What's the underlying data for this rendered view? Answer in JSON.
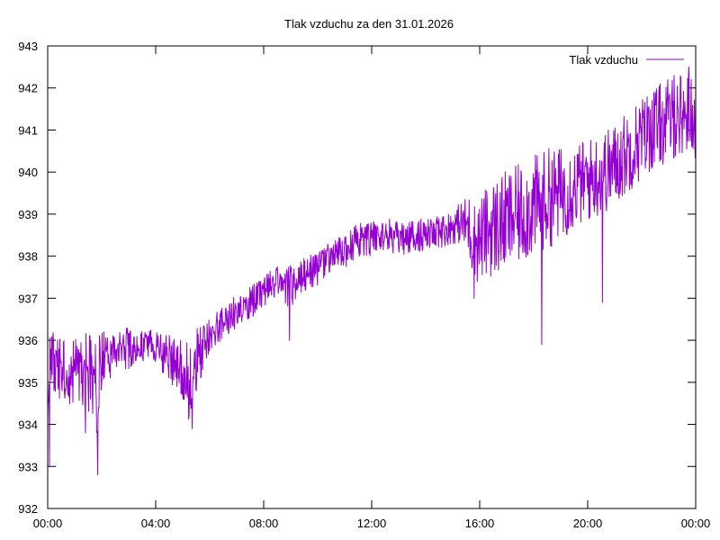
{
  "chart_data": {
    "type": "line",
    "title": "Tlak vzduchu za den 31.01.2026",
    "xlabel": "",
    "ylabel": "",
    "x_tick_labels": [
      "00:00",
      "04:00",
      "08:00",
      "12:00",
      "16:00",
      "20:00",
      "00:00"
    ],
    "x_tick_hours": [
      0,
      4,
      8,
      12,
      16,
      20,
      24
    ],
    "y_ticks": [
      932,
      933,
      934,
      935,
      936,
      937,
      938,
      939,
      940,
      941,
      942,
      943
    ],
    "xlim_hours": [
      0,
      24
    ],
    "ylim": [
      932,
      943
    ],
    "grid": false,
    "legend_position": "top-right",
    "series": [
      {
        "name": "Tlak vzduchu",
        "color": "#9400d3",
        "x_hours": [
          0.0,
          0.05,
          0.1,
          0.17,
          0.3,
          0.5,
          0.7,
          0.85,
          1.0,
          1.2,
          1.4,
          1.6,
          1.8,
          1.85,
          1.9,
          2.0,
          2.2,
          2.5,
          2.8,
          3.0,
          3.3,
          3.6,
          4.0,
          4.3,
          4.6,
          5.0,
          5.2,
          5.35,
          5.5,
          5.8,
          6.0,
          6.3,
          6.6,
          7.0,
          7.4,
          7.8,
          8.0,
          8.3,
          8.6,
          8.9,
          9.0,
          9.3,
          9.6,
          10.0,
          10.3,
          10.6,
          11.0,
          11.3,
          11.6,
          12.0,
          12.3,
          12.6,
          13.0,
          13.3,
          13.6,
          14.0,
          14.3,
          14.6,
          15.0,
          15.3,
          15.6,
          15.8,
          16.0,
          16.3,
          16.6,
          16.9,
          17.2,
          17.5,
          17.8,
          18.0,
          18.3,
          18.6,
          19.0,
          19.3,
          19.6,
          20.0,
          20.3,
          20.6,
          20.9,
          21.2,
          21.5,
          21.8,
          22.0,
          22.3,
          22.6,
          22.9,
          23.2,
          23.5,
          23.8,
          24.0
        ],
        "y_mean": [
          934.0,
          935.2,
          935.5,
          935.6,
          935.5,
          935.3,
          935.4,
          935.3,
          935.2,
          935.2,
          935.3,
          935.1,
          935.0,
          935.0,
          935.1,
          935.4,
          935.6,
          935.7,
          935.8,
          935.8,
          935.9,
          935.9,
          935.8,
          935.7,
          935.5,
          935.3,
          935.0,
          935.1,
          935.5,
          935.9,
          936.1,
          936.3,
          936.5,
          936.7,
          936.9,
          937.0,
          937.1,
          937.3,
          937.4,
          937.3,
          937.3,
          937.5,
          937.6,
          937.7,
          937.9,
          938.0,
          938.1,
          938.3,
          938.4,
          938.4,
          938.5,
          938.5,
          938.4,
          938.4,
          938.5,
          938.5,
          938.5,
          938.6,
          938.7,
          938.8,
          938.7,
          938.3,
          938.4,
          938.6,
          938.7,
          938.8,
          938.9,
          939.0,
          939.1,
          939.2,
          939.3,
          939.4,
          939.5,
          939.6,
          939.7,
          939.8,
          939.9,
          940.0,
          940.1,
          940.3,
          940.5,
          940.7,
          940.8,
          941.0,
          941.1,
          941.2,
          941.3,
          941.4,
          941.4,
          941.3
        ],
        "noise_amplitude": [
          0.8,
          1.2,
          0.8,
          0.8,
          0.8,
          0.8,
          0.8,
          0.9,
          0.9,
          0.9,
          0.9,
          1.0,
          1.2,
          1.2,
          1.0,
          0.8,
          0.6,
          0.5,
          0.5,
          0.5,
          0.4,
          0.4,
          0.4,
          0.5,
          0.6,
          0.8,
          1.0,
          1.0,
          0.8,
          0.5,
          0.4,
          0.4,
          0.4,
          0.4,
          0.4,
          0.4,
          0.4,
          0.4,
          0.4,
          0.5,
          0.6,
          0.4,
          0.4,
          0.4,
          0.4,
          0.4,
          0.4,
          0.4,
          0.4,
          0.4,
          0.4,
          0.4,
          0.4,
          0.4,
          0.4,
          0.4,
          0.4,
          0.4,
          0.4,
          0.5,
          0.8,
          1.0,
          1.0,
          1.1,
          1.2,
          1.2,
          1.2,
          1.2,
          1.2,
          1.2,
          1.2,
          1.2,
          1.1,
          1.1,
          1.0,
          1.0,
          1.0,
          1.0,
          1.0,
          1.0,
          1.0,
          1.0,
          1.0,
          1.0,
          1.0,
          1.0,
          1.0,
          1.0,
          1.0,
          1.0
        ],
        "notable_points": [
          {
            "x_hour": 0.07,
            "y": 933.0
          },
          {
            "x_hour": 1.4,
            "y": 933.8
          },
          {
            "x_hour": 1.85,
            "y": 932.8
          },
          {
            "x_hour": 5.35,
            "y": 933.9
          },
          {
            "x_hour": 8.95,
            "y": 936.0
          },
          {
            "x_hour": 15.8,
            "y": 937.0
          },
          {
            "x_hour": 18.3,
            "y": 935.9
          },
          {
            "x_hour": 20.55,
            "y": 936.9
          },
          {
            "x_hour": 23.2,
            "y": 942.3
          },
          {
            "x_hour": 23.75,
            "y": 942.5
          }
        ]
      }
    ]
  }
}
